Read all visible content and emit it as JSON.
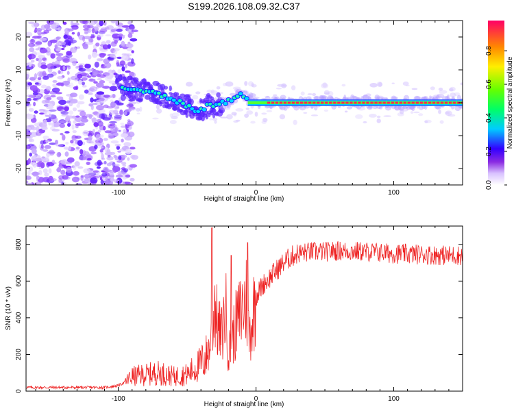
{
  "title": "S199.2026.108.09.32.C37",
  "colors": {
    "snr_line": "#ee2222",
    "ridge": "#ff2255"
  },
  "colorbar": {
    "label": "Normalized spectral amplitude",
    "ticks": [
      "0.0",
      "0.2",
      "0.4",
      "0.6",
      "0.8"
    ]
  },
  "chart_data": [
    {
      "type": "heatmap",
      "name": "spectrogram",
      "xlabel": "Height of straight line (km)",
      "ylabel": "Frequency (Hz)",
      "xlim": [
        -167,
        150
      ],
      "ylim": [
        -25,
        25
      ],
      "xticks": [
        -100,
        0,
        100
      ],
      "xtick_labels": [
        "-100",
        "0",
        "100"
      ],
      "yticks": [
        20,
        10,
        0,
        -10,
        -20
      ],
      "ytick_labels": [
        "20",
        "10",
        "0",
        "-10",
        "-20"
      ],
      "ridge": {
        "x": [
          -100,
          -90,
          -80,
          -70,
          -60,
          -50,
          -45,
          -40,
          -35,
          -30,
          -25,
          -20,
          -15,
          -12,
          -8,
          -5,
          0,
          10,
          150
        ],
        "freq": [
          5,
          4,
          3.5,
          2.5,
          1,
          -1,
          -2,
          -2.5,
          -0.5,
          -1,
          0,
          0.5,
          2,
          3,
          1,
          1.5,
          0.5,
          0,
          0
        ]
      },
      "colorbar_range": [
        0,
        1
      ]
    },
    {
      "type": "line",
      "name": "snr",
      "xlabel": "Height of straight line (km)",
      "ylabel": "SNR (10 * v/v)",
      "xlim": [
        -167,
        150
      ],
      "ylim": [
        0,
        900
      ],
      "xticks": [
        -100,
        0,
        100
      ],
      "xtick_labels": [
        "-100",
        "0",
        "100"
      ],
      "yticks": [
        0,
        200,
        400,
        600,
        800
      ],
      "ytick_labels": [
        "0",
        "200",
        "400",
        "600",
        "800"
      ],
      "envelope": {
        "x": [
          -167,
          -110,
          -100,
          -95,
          -90,
          -80,
          -70,
          -60,
          -50,
          -45,
          -40,
          -35,
          -32,
          -30,
          -28,
          -25,
          -22,
          -20,
          -15,
          -10,
          -7,
          -5,
          -3,
          0,
          5,
          10,
          15,
          20,
          25,
          30,
          40,
          50,
          60,
          80,
          100,
          120,
          140,
          150
        ],
        "snr": [
          20,
          20,
          30,
          50,
          80,
          90,
          100,
          80,
          90,
          120,
          150,
          200,
          300,
          500,
          350,
          300,
          450,
          200,
          350,
          450,
          500,
          300,
          380,
          520,
          580,
          620,
          660,
          700,
          730,
          750,
          760,
          760,
          765,
          760,
          750,
          745,
          740,
          740
        ]
      },
      "peaks": [
        {
          "x": -32,
          "snr": 890
        },
        {
          "x": -18,
          "snr": 740
        },
        {
          "x": -6,
          "snr": 810
        }
      ]
    }
  ]
}
